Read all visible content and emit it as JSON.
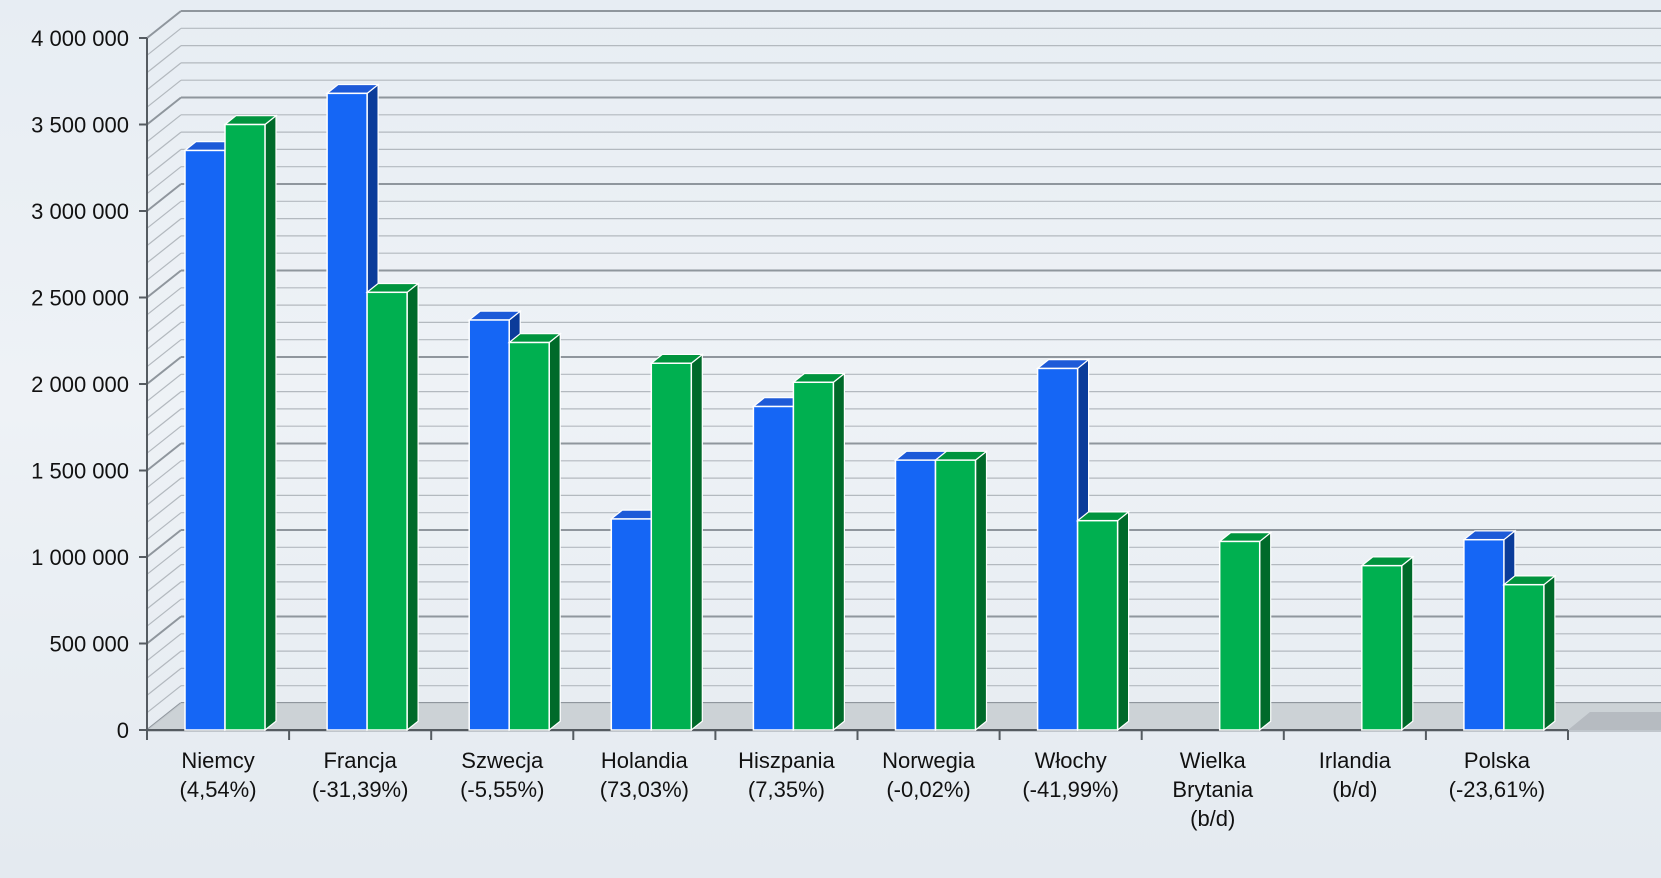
{
  "chart_data": {
    "type": "bar",
    "title": "",
    "xlabel": "",
    "ylabel": "",
    "ylim": [
      0,
      4000000
    ],
    "y_tick_step": 500000,
    "y_tick_labels": [
      "0",
      "500 000",
      "1 000 000",
      "1 500 000",
      "2 000 000",
      "2 500 000",
      "3 000 000",
      "3 500 000",
      "4 000 000"
    ],
    "categories": [
      [
        "Niemcy",
        "(4,54%)"
      ],
      [
        "Francja",
        "(-31,39%)"
      ],
      [
        "Szwecja",
        "(-5,55%)"
      ],
      [
        "Holandia",
        "(73,03%)"
      ],
      [
        "Hiszpania",
        "(7,35%)"
      ],
      [
        "Norwegia",
        "(-0,02%)"
      ],
      [
        "Włochy",
        "(-41,99%)"
      ],
      [
        "Wielka",
        "Brytania",
        "(b/d)"
      ],
      [
        "Irlandia",
        "(b/d)"
      ],
      [
        "Polska",
        "(-23,61%)"
      ]
    ],
    "series": [
      {
        "values": [
          3350000,
          3680000,
          2370000,
          1220000,
          1870000,
          1560000,
          2090000,
          null,
          null,
          1100000
        ]
      },
      {
        "values": [
          3500000,
          2530000,
          2240000,
          2120000,
          2010000,
          1560000,
          1210000,
          1090000,
          950000,
          840000
        ]
      }
    ],
    "grid": true,
    "legend": "none",
    "style": "3d-column",
    "colors": {
      "series1_front": "#1566f5",
      "series1_side": "#0b3c9a",
      "series1_top": "#1d5ad8",
      "series2_front": "#00b050",
      "series2_side": "#006a2a",
      "series2_top": "#00943e",
      "gridline_major": "#8f969d",
      "gridline_minor": "#b3b9bf",
      "floor": "#c9ced3"
    }
  }
}
